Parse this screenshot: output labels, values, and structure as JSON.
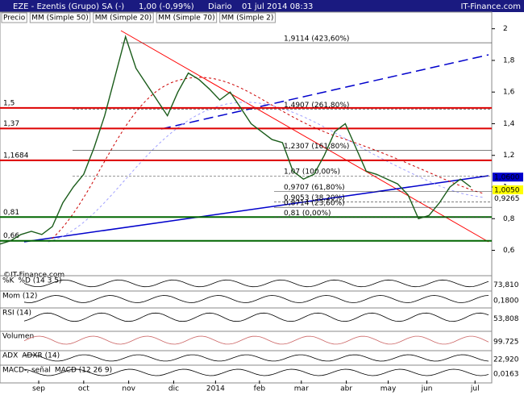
{
  "chart_data": {
    "type": "line",
    "title": "EZE - Ezentis (Grupo) SA (-)",
    "quote": "1,00 (-0,99%)",
    "period": "Diario",
    "date": "01 jul 2014 08:33",
    "brand": "IT-Finance.com",
    "watermark": "©IT-Finance.com",
    "indicators": [
      {
        "name": "Precio",
        "color": "#000000"
      },
      {
        "name": "MM (Simple 50)",
        "color": "#a0a0ff"
      },
      {
        "name": "MM (Simple 20)",
        "color": "#cc0000"
      },
      {
        "name": "MM (Simple 70)",
        "color": "#0000aa"
      },
      {
        "name": "MM (Simple 2)",
        "color": "#0000aa"
      }
    ],
    "x": [
      0,
      1,
      2,
      3,
      4,
      5,
      6,
      7,
      8,
      9,
      10,
      11,
      12,
      13,
      14,
      15,
      16,
      17,
      18,
      19,
      20,
      21,
      22,
      23,
      24,
      25,
      26,
      27,
      28,
      29,
      30,
      31,
      32,
      33,
      34,
      35,
      36,
      37,
      38,
      39,
      40,
      41,
      42,
      43,
      44,
      45
    ],
    "series": [
      {
        "name": "Precio",
        "color": "#1a5c1a",
        "values": [
          0.64,
          0.66,
          0.7,
          0.72,
          0.7,
          0.75,
          0.9,
          1.0,
          1.08,
          1.25,
          1.45,
          1.7,
          1.95,
          1.75,
          1.65,
          1.55,
          1.45,
          1.6,
          1.72,
          1.68,
          1.62,
          1.55,
          1.6,
          1.5,
          1.4,
          1.35,
          1.3,
          1.28,
          1.1,
          1.05,
          1.08,
          1.2,
          1.35,
          1.4,
          1.25,
          1.1,
          1.08,
          1.05,
          1.02,
          0.95,
          0.8,
          0.82,
          0.9,
          1.0,
          1.05,
          1.0
        ]
      }
    ],
    "xlim": [
      0,
      47
    ],
    "xticks": [
      {
        "value": 3.7,
        "label": "sep"
      },
      {
        "value": 8,
        "label": "oct"
      },
      {
        "value": 12.3,
        "label": "nov"
      },
      {
        "value": 16.6,
        "label": "dic"
      },
      {
        "value": 20.6,
        "label": "2014"
      },
      {
        "value": 24.8,
        "label": "feb"
      },
      {
        "value": 28.8,
        "label": "mar"
      },
      {
        "value": 33.1,
        "label": "abr"
      },
      {
        "value": 37.1,
        "label": "may"
      },
      {
        "value": 40.8,
        "label": "jun"
      },
      {
        "value": 45.4,
        "label": "jul"
      }
    ],
    "ylim": [
      0.46,
      2.09
    ],
    "yticks": [
      {
        "value": 0.6,
        "label": "0,6"
      },
      {
        "value": 0.8,
        "label": "0,8"
      },
      1,
      {
        "value": 1.2,
        "label": "1,2"
      },
      {
        "value": 1.4,
        "label": "1,4"
      },
      {
        "value": 1.6,
        "label": "1,6"
      },
      {
        "value": 1.8,
        "label": "1,8"
      },
      2
    ],
    "levels": [
      {
        "value": 1.5,
        "label": "1,5"
      },
      {
        "value": 1.37,
        "label": "1,37"
      },
      {
        "value": 1.1684,
        "label": "1,1684"
      },
      {
        "value": 0.81,
        "label": "0,81"
      },
      {
        "value": 0.66,
        "label": "0,66"
      }
    ],
    "fibonacci": [
      {
        "value": 1.9114,
        "label": "1,9114 (423,60%)"
      },
      {
        "value": 1.4907,
        "label": "1,4907 (261,80%)"
      },
      {
        "value": 1.2307,
        "label": "1,2307 (161,80%)"
      },
      {
        "value": 1.07,
        "label": "1,07 (100,00%)"
      },
      {
        "value": 0.9707,
        "label": "0,9707 (61,80%)"
      },
      {
        "value": 0.9053,
        "label": "0,9053 (38,20%)"
      },
      {
        "value": 0.8714,
        "label": "0,8714 (23,60%)"
      },
      {
        "value": 0.81,
        "label": "0,81 (0,00%)"
      }
    ],
    "price_tags": [
      {
        "value": 1.06,
        "label": "1,0600",
        "color": "#0000cc"
      },
      {
        "value": 1.005,
        "label": "1,0050",
        "color": "#ffff00"
      },
      {
        "value": 0.9265,
        "label": "0,9265",
        "color": "#cc0000"
      }
    ],
    "panels": [
      {
        "label": "%K",
        "label2": "%D (14 3 5)",
        "reading": "73,810"
      },
      {
        "label": "Mom (12)",
        "reading": "0,1800"
      },
      {
        "label": "RSI (14)",
        "reading": "53,808"
      },
      {
        "label": "Volumen",
        "reading": "99.725"
      },
      {
        "label": "ADX",
        "label2": "ADXR (14)",
        "reading": "22,920"
      },
      {
        "label": "MACD-, señal",
        "label2": "MACD (12 26 9)",
        "reading": "0,0163"
      }
    ]
  }
}
